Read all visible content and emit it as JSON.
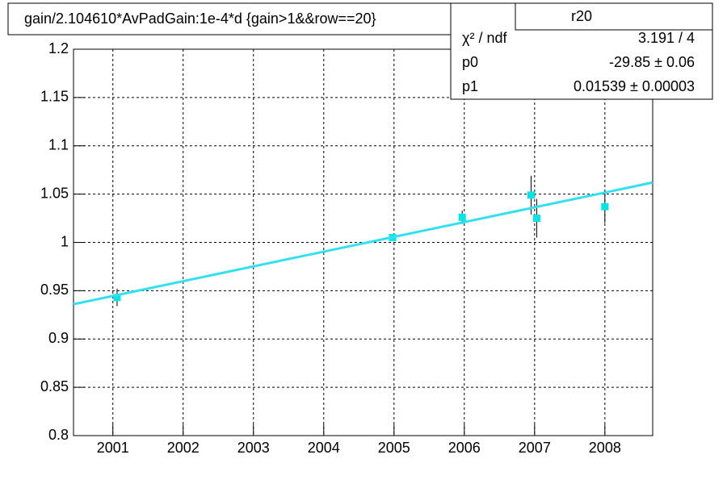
{
  "chart_data": {
    "type": "scatter",
    "title": "gain/2.104610*AvPadGain:1e-4*d  {gain>1&&row==20}",
    "x": [
      2001.06,
      2004.98,
      2005.97,
      2006.95,
      2007.03,
      2008.0
    ],
    "values": [
      0.943,
      1.005,
      1.026,
      1.049,
      1.025,
      1.037
    ],
    "errors": [
      0.009,
      0.003,
      0.007,
      0.02,
      0.02,
      0.017
    ],
    "color": "#00e5e5",
    "fit": {
      "x": [
        2000.44,
        2008.68
      ],
      "y": [
        0.936,
        1.062
      ],
      "color": "#33e0f0"
    },
    "xlim": [
      2000.44,
      2008.68
    ],
    "ylim": [
      0.8,
      1.2
    ],
    "xticks": [
      2001,
      2002,
      2003,
      2004,
      2005,
      2006,
      2007,
      2008
    ],
    "yticks": [
      0.8,
      0.85,
      0.9,
      0.95,
      1,
      1.05,
      1.1,
      1.15,
      1.2
    ],
    "grid": true,
    "stats": {
      "title": "r20",
      "rows": [
        [
          "χ² / ndf",
          "3.191 / 4"
        ],
        [
          "p0",
          "-29.85 ± 0.06"
        ],
        [
          "p1",
          "0.01539 ± 0.00003"
        ]
      ]
    }
  }
}
